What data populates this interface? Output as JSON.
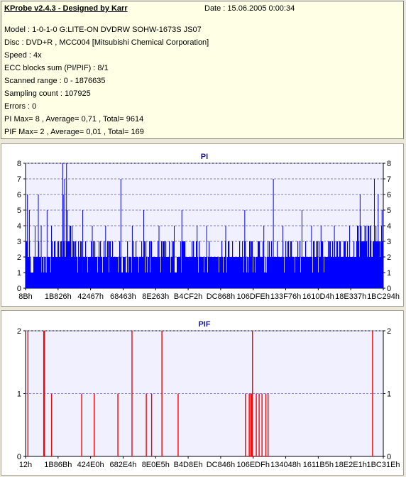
{
  "header": {
    "title": "KProbe v2.4.3 - Designed by Karr",
    "date": "Date : 15.06.2005 0:00:34"
  },
  "info_lines": [
    "Model : 1-0-1-0 G:LITE-ON DVDRW SOHW-1673S JS07",
    "Disc : DVD+R , MCC004 [Mitsubishi Chemical Corporation]",
    "Speed : 4x",
    "ECC blocks sum (PI/PIF) : 8/1",
    "Scanned range : 0 - 1876635",
    "Sampling count : 107925",
    "Errors : 0",
    "PI Max= 8 , Average= 0,71 , Total= 9614",
    "PIF Max= 2 , Average= 0,01 , Total= 169"
  ],
  "colors": {
    "pi": "#0000FF",
    "pif": "#FF0000",
    "plot_bg": "#F0F0FF",
    "grid": "#8080C0",
    "title": "#1A1A8C"
  },
  "chart_data": [
    {
      "type": "bar",
      "title": "PI",
      "ylim": [
        0,
        8
      ],
      "y_ticks": [
        0,
        1,
        2,
        3,
        4,
        5,
        6,
        7,
        8
      ],
      "x_tick_labels": [
        "8Bh",
        "1B826h",
        "42467h",
        "68463h",
        "8E263h",
        "B4CF2h",
        "DC868h",
        "106DFEh",
        "133F76h",
        "1610D4h",
        "18E337h",
        "1BC294h"
      ],
      "x_range": [
        0,
        1876635
      ],
      "baseline": [
        [
          0,
          3
        ],
        [
          18000,
          2
        ],
        [
          30000,
          1
        ],
        [
          60000,
          2
        ],
        [
          90000,
          1.5
        ],
        [
          140000,
          2
        ],
        [
          200000,
          2.5
        ],
        [
          230000,
          3
        ],
        [
          280000,
          2
        ],
        [
          400000,
          2
        ],
        [
          500000,
          2
        ],
        [
          600000,
          2
        ],
        [
          700000,
          2
        ],
        [
          800000,
          2
        ],
        [
          900000,
          2
        ],
        [
          1000000,
          2
        ],
        [
          1100000,
          2
        ],
        [
          1200000,
          2
        ],
        [
          1300000,
          2
        ],
        [
          1400000,
          2
        ],
        [
          1500000,
          2
        ],
        [
          1600000,
          2
        ],
        [
          1700000,
          2.5
        ],
        [
          1750000,
          3
        ],
        [
          1800000,
          3
        ],
        [
          1876635,
          3
        ]
      ],
      "spikes": [
        [
          10000,
          6
        ],
        [
          20000,
          5
        ],
        [
          50000,
          4
        ],
        [
          67000,
          6
        ],
        [
          82000,
          4
        ],
        [
          113000,
          5
        ],
        [
          136000,
          4
        ],
        [
          195000,
          8
        ],
        [
          198000,
          6
        ],
        [
          205000,
          7
        ],
        [
          215000,
          8
        ],
        [
          219000,
          5
        ],
        [
          245000,
          4
        ],
        [
          300000,
          5
        ],
        [
          350000,
          4
        ],
        [
          420000,
          4
        ],
        [
          500000,
          7
        ],
        [
          560000,
          4
        ],
        [
          620000,
          5
        ],
        [
          700000,
          4
        ],
        [
          780000,
          4
        ],
        [
          820000,
          5
        ],
        [
          900000,
          4
        ],
        [
          950000,
          4
        ],
        [
          1050000,
          4
        ],
        [
          1150000,
          5
        ],
        [
          1250000,
          4
        ],
        [
          1300000,
          7
        ],
        [
          1350000,
          4
        ],
        [
          1450000,
          5
        ],
        [
          1500000,
          4
        ],
        [
          1550000,
          4
        ],
        [
          1620000,
          4
        ],
        [
          1700000,
          4
        ],
        [
          1755000,
          6
        ],
        [
          1780000,
          4
        ],
        [
          1810000,
          4
        ],
        [
          1830000,
          7
        ],
        [
          1850000,
          6
        ],
        [
          1870000,
          5
        ]
      ]
    },
    {
      "type": "bar",
      "title": "PIF",
      "ylim": [
        0,
        2
      ],
      "y_ticks": [
        0,
        1,
        2
      ],
      "x_tick_labels": [
        "12h",
        "1B86Bh",
        "424E0h",
        "682E4h",
        "8E0E5h",
        "B4D8Eh",
        "DC846h",
        "106EDFh",
        "134048h",
        "1611B5h",
        "18E2E1h",
        "1BC31Eh"
      ],
      "x_range": [
        0,
        1876635
      ],
      "bars": [
        [
          12000,
          2
        ],
        [
          95000,
          2
        ],
        [
          99000,
          2
        ],
        [
          136000,
          1
        ],
        [
          294000,
          1
        ],
        [
          360000,
          1
        ],
        [
          484000,
          1
        ],
        [
          558000,
          2
        ],
        [
          633000,
          1
        ],
        [
          661000,
          1
        ],
        [
          715000,
          2
        ],
        [
          800000,
          1
        ],
        [
          1153000,
          1
        ],
        [
          1173000,
          1
        ],
        [
          1180000,
          1
        ],
        [
          1186000,
          1
        ],
        [
          1190000,
          2
        ],
        [
          1210000,
          1
        ],
        [
          1225000,
          1
        ],
        [
          1240000,
          1
        ],
        [
          1260000,
          1
        ],
        [
          1272000,
          1
        ],
        [
          1820000,
          2
        ]
      ]
    }
  ]
}
